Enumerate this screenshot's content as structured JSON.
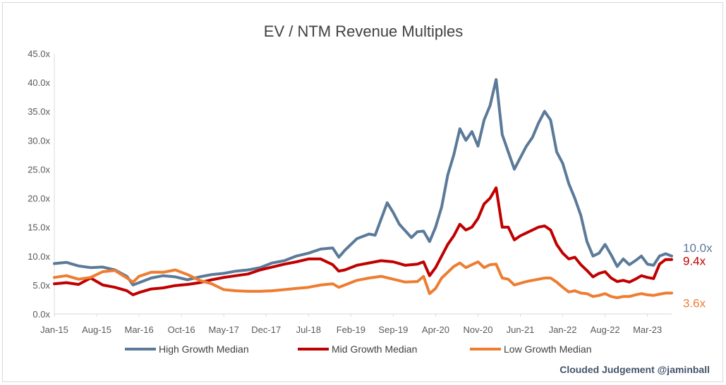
{
  "chart_data": {
    "type": "line",
    "title": "EV / NTM Revenue Multiples",
    "xlabel": "",
    "ylabel": "",
    "x_tick_labels": [
      "Jan-15",
      "Aug-15",
      "Mar-16",
      "Oct-16",
      "May-17",
      "Dec-17",
      "Jul-18",
      "Feb-19",
      "Sep-19",
      "Apr-20",
      "Nov-20",
      "Jun-21",
      "Jan-22",
      "Aug-22",
      "Mar-23"
    ],
    "y_tick_labels": [
      "0.0x",
      "5.0x",
      "10.0x",
      "15.0x",
      "20.0x",
      "25.0x",
      "30.0x",
      "35.0x",
      "40.0x",
      "45.0x"
    ],
    "ylim": [
      0,
      45
    ],
    "x_range": [
      "2015-01",
      "2023-07"
    ],
    "grid": false,
    "legend_position": "bottom",
    "series": [
      {
        "name": "High Growth Median",
        "color": "#5b7a99",
        "end_label": "10.0x",
        "points": [
          [
            "2015-01",
            8.7
          ],
          [
            "2015-03",
            8.9
          ],
          [
            "2015-05",
            8.3
          ],
          [
            "2015-07",
            8.0
          ],
          [
            "2015-09",
            8.1
          ],
          [
            "2015-11",
            7.6
          ],
          [
            "2016-01",
            6.5
          ],
          [
            "2016-02",
            5.0
          ],
          [
            "2016-03",
            5.4
          ],
          [
            "2016-05",
            6.2
          ],
          [
            "2016-07",
            6.6
          ],
          [
            "2016-09",
            6.4
          ],
          [
            "2016-11",
            5.9
          ],
          [
            "2017-01",
            6.4
          ],
          [
            "2017-03",
            6.8
          ],
          [
            "2017-05",
            7.0
          ],
          [
            "2017-07",
            7.4
          ],
          [
            "2017-09",
            7.6
          ],
          [
            "2017-11",
            8.0
          ],
          [
            "2018-01",
            8.8
          ],
          [
            "2018-03",
            9.2
          ],
          [
            "2018-05",
            10.0
          ],
          [
            "2018-07",
            10.5
          ],
          [
            "2018-09",
            11.2
          ],
          [
            "2018-11",
            11.4
          ],
          [
            "2018-12",
            9.8
          ],
          [
            "2019-01",
            11.0
          ],
          [
            "2019-03",
            13.0
          ],
          [
            "2019-05",
            13.8
          ],
          [
            "2019-06",
            13.6
          ],
          [
            "2019-08",
            19.2
          ],
          [
            "2019-09",
            17.5
          ],
          [
            "2019-10",
            15.5
          ],
          [
            "2019-12",
            13.2
          ],
          [
            "2020-01",
            14.2
          ],
          [
            "2020-02",
            14.3
          ],
          [
            "2020-03",
            12.5
          ],
          [
            "2020-04",
            15.0
          ],
          [
            "2020-05",
            18.5
          ],
          [
            "2020-06",
            24.0
          ],
          [
            "2020-07",
            27.5
          ],
          [
            "2020-08",
            32.0
          ],
          [
            "2020-09",
            30.0
          ],
          [
            "2020-10",
            31.5
          ],
          [
            "2020-11",
            29.0
          ],
          [
            "2020-12",
            33.5
          ],
          [
            "2021-01",
            36.0
          ],
          [
            "2021-02",
            40.5
          ],
          [
            "2021-03",
            31.0
          ],
          [
            "2021-04",
            28.0
          ],
          [
            "2021-05",
            25.0
          ],
          [
            "2021-06",
            27.0
          ],
          [
            "2021-07",
            29.0
          ],
          [
            "2021-08",
            30.5
          ],
          [
            "2021-09",
            33.0
          ],
          [
            "2021-10",
            35.0
          ],
          [
            "2021-11",
            33.5
          ],
          [
            "2021-12",
            28.0
          ],
          [
            "2022-01",
            26.0
          ],
          [
            "2022-02",
            22.5
          ],
          [
            "2022-03",
            20.0
          ],
          [
            "2022-04",
            17.0
          ],
          [
            "2022-05",
            12.5
          ],
          [
            "2022-06",
            10.0
          ],
          [
            "2022-07",
            10.5
          ],
          [
            "2022-08",
            12.0
          ],
          [
            "2022-09",
            10.2
          ],
          [
            "2022-10",
            8.2
          ],
          [
            "2022-11",
            9.5
          ],
          [
            "2022-12",
            8.5
          ],
          [
            "2023-01",
            9.2
          ],
          [
            "2023-02",
            10.0
          ],
          [
            "2023-03",
            8.6
          ],
          [
            "2023-04",
            8.4
          ],
          [
            "2023-05",
            10.0
          ],
          [
            "2023-06",
            10.4
          ],
          [
            "2023-07",
            10.0
          ]
        ]
      },
      {
        "name": "Mid Growth Median",
        "color": "#c00000",
        "end_label": "9.4x",
        "points": [
          [
            "2015-01",
            5.2
          ],
          [
            "2015-03",
            5.4
          ],
          [
            "2015-05",
            5.1
          ],
          [
            "2015-07",
            6.2
          ],
          [
            "2015-09",
            5.0
          ],
          [
            "2015-11",
            4.6
          ],
          [
            "2016-01",
            4.0
          ],
          [
            "2016-02",
            3.3
          ],
          [
            "2016-03",
            3.7
          ],
          [
            "2016-05",
            4.3
          ],
          [
            "2016-07",
            4.5
          ],
          [
            "2016-09",
            4.9
          ],
          [
            "2016-11",
            5.1
          ],
          [
            "2017-01",
            5.4
          ],
          [
            "2017-03",
            5.9
          ],
          [
            "2017-05",
            6.3
          ],
          [
            "2017-07",
            6.6
          ],
          [
            "2017-09",
            6.9
          ],
          [
            "2017-11",
            7.6
          ],
          [
            "2018-01",
            8.1
          ],
          [
            "2018-03",
            8.6
          ],
          [
            "2018-05",
            9.0
          ],
          [
            "2018-07",
            9.5
          ],
          [
            "2018-09",
            9.5
          ],
          [
            "2018-11",
            8.5
          ],
          [
            "2018-12",
            7.4
          ],
          [
            "2019-01",
            7.6
          ],
          [
            "2019-03",
            8.4
          ],
          [
            "2019-05",
            8.8
          ],
          [
            "2019-07",
            9.2
          ],
          [
            "2019-09",
            9.0
          ],
          [
            "2019-11",
            8.4
          ],
          [
            "2020-01",
            8.6
          ],
          [
            "2020-02",
            9.0
          ],
          [
            "2020-03",
            6.6
          ],
          [
            "2020-04",
            8.0
          ],
          [
            "2020-05",
            10.0
          ],
          [
            "2020-06",
            12.0
          ],
          [
            "2020-07",
            13.5
          ],
          [
            "2020-08",
            15.5
          ],
          [
            "2020-09",
            14.5
          ],
          [
            "2020-10",
            15.0
          ],
          [
            "2020-11",
            16.5
          ],
          [
            "2020-12",
            19.0
          ],
          [
            "2021-01",
            20.0
          ],
          [
            "2021-02",
            21.8
          ],
          [
            "2021-03",
            15.0
          ],
          [
            "2021-04",
            15.0
          ],
          [
            "2021-05",
            12.8
          ],
          [
            "2021-06",
            13.5
          ],
          [
            "2021-07",
            14.0
          ],
          [
            "2021-08",
            14.5
          ],
          [
            "2021-09",
            15.0
          ],
          [
            "2021-10",
            15.2
          ],
          [
            "2021-11",
            14.5
          ],
          [
            "2021-12",
            12.0
          ],
          [
            "2022-01",
            10.5
          ],
          [
            "2022-02",
            9.5
          ],
          [
            "2022-03",
            9.8
          ],
          [
            "2022-04",
            8.5
          ],
          [
            "2022-05",
            7.5
          ],
          [
            "2022-06",
            6.4
          ],
          [
            "2022-07",
            7.0
          ],
          [
            "2022-08",
            7.3
          ],
          [
            "2022-09",
            6.2
          ],
          [
            "2022-10",
            5.6
          ],
          [
            "2022-11",
            5.8
          ],
          [
            "2022-12",
            5.5
          ],
          [
            "2023-01",
            6.0
          ],
          [
            "2023-02",
            6.6
          ],
          [
            "2023-03",
            6.3
          ],
          [
            "2023-04",
            6.1
          ],
          [
            "2023-05",
            8.6
          ],
          [
            "2023-06",
            9.4
          ],
          [
            "2023-07",
            9.4
          ]
        ]
      },
      {
        "name": "Low Growth Median",
        "color": "#ed7d31",
        "end_label": "3.6x",
        "points": [
          [
            "2015-01",
            6.3
          ],
          [
            "2015-03",
            6.6
          ],
          [
            "2015-05",
            6.0
          ],
          [
            "2015-07",
            6.3
          ],
          [
            "2015-09",
            7.3
          ],
          [
            "2015-11",
            7.5
          ],
          [
            "2016-01",
            6.2
          ],
          [
            "2016-02",
            5.5
          ],
          [
            "2016-03",
            6.5
          ],
          [
            "2016-05",
            7.2
          ],
          [
            "2016-07",
            7.2
          ],
          [
            "2016-09",
            7.6
          ],
          [
            "2016-11",
            6.8
          ],
          [
            "2017-01",
            5.8
          ],
          [
            "2017-03",
            5.2
          ],
          [
            "2017-05",
            4.2
          ],
          [
            "2017-07",
            4.0
          ],
          [
            "2017-09",
            3.9
          ],
          [
            "2017-11",
            3.9
          ],
          [
            "2018-01",
            4.0
          ],
          [
            "2018-03",
            4.2
          ],
          [
            "2018-05",
            4.4
          ],
          [
            "2018-07",
            4.6
          ],
          [
            "2018-09",
            5.0
          ],
          [
            "2018-11",
            5.2
          ],
          [
            "2018-12",
            4.6
          ],
          [
            "2019-01",
            5.0
          ],
          [
            "2019-03",
            5.8
          ],
          [
            "2019-05",
            6.2
          ],
          [
            "2019-07",
            6.5
          ],
          [
            "2019-09",
            6.0
          ],
          [
            "2019-11",
            5.5
          ],
          [
            "2020-01",
            5.6
          ],
          [
            "2020-02",
            6.5
          ],
          [
            "2020-03",
            3.5
          ],
          [
            "2020-04",
            4.4
          ],
          [
            "2020-05",
            6.2
          ],
          [
            "2020-06",
            7.2
          ],
          [
            "2020-07",
            8.2
          ],
          [
            "2020-08",
            8.8
          ],
          [
            "2020-09",
            8.0
          ],
          [
            "2020-10",
            8.5
          ],
          [
            "2020-11",
            9.0
          ],
          [
            "2020-12",
            8.0
          ],
          [
            "2021-01",
            8.5
          ],
          [
            "2021-02",
            8.6
          ],
          [
            "2021-03",
            6.2
          ],
          [
            "2021-04",
            6.0
          ],
          [
            "2021-05",
            5.0
          ],
          [
            "2021-06",
            5.3
          ],
          [
            "2021-07",
            5.6
          ],
          [
            "2021-08",
            5.8
          ],
          [
            "2021-09",
            6.0
          ],
          [
            "2021-10",
            6.2
          ],
          [
            "2021-11",
            6.2
          ],
          [
            "2021-12",
            5.5
          ],
          [
            "2022-01",
            4.6
          ],
          [
            "2022-02",
            3.8
          ],
          [
            "2022-03",
            4.0
          ],
          [
            "2022-04",
            3.6
          ],
          [
            "2022-05",
            3.5
          ],
          [
            "2022-06",
            3.0
          ],
          [
            "2022-07",
            3.2
          ],
          [
            "2022-08",
            3.5
          ],
          [
            "2022-09",
            3.0
          ],
          [
            "2022-10",
            2.8
          ],
          [
            "2022-11",
            3.0
          ],
          [
            "2022-12",
            3.0
          ],
          [
            "2023-01",
            3.3
          ],
          [
            "2023-02",
            3.5
          ],
          [
            "2023-03",
            3.3
          ],
          [
            "2023-04",
            3.2
          ],
          [
            "2023-05",
            3.4
          ],
          [
            "2023-06",
            3.6
          ],
          [
            "2023-07",
            3.6
          ]
        ]
      }
    ]
  },
  "watermark": "Clouded Judgement @jaminball"
}
